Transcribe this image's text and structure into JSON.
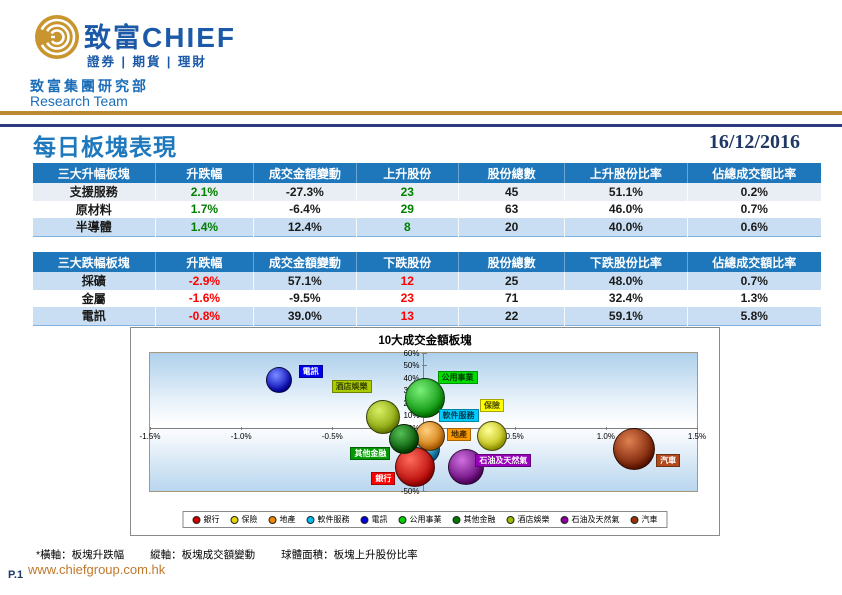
{
  "header": {
    "brand_cjk": "致富",
    "brand_latin": "CHIEF",
    "tagline": "證券 | 期貨 | 理財",
    "dept": "致富集團研究部",
    "team": "Research Team"
  },
  "title": "每日板塊表現",
  "date": "16/12/2016",
  "colors": {
    "accent_blue": "#1e76bb",
    "gold_rule": "#bb8a33",
    "navy_rule": "#2b3b7e",
    "positive": "#008000",
    "negative": "#ff0000",
    "url_gold": "#c0782a"
  },
  "tables": [
    {
      "headers": [
        "三大升幅板塊",
        "升跌幅",
        "成交金額變動",
        "上升股份",
        "股份總數",
        "上升股份比率",
        "佔總成交額比率"
      ],
      "rows": [
        [
          "支援服務",
          "2.1%",
          "-27.3%",
          "23",
          "45",
          "51.1%",
          "0.2%"
        ],
        [
          "原材料",
          "1.7%",
          "-6.4%",
          "29",
          "63",
          "46.0%",
          "0.7%"
        ],
        [
          "半導體",
          "1.4%",
          "12.4%",
          "8",
          "20",
          "40.0%",
          "0.6%"
        ]
      ]
    },
    {
      "headers": [
        "三大跌幅板塊",
        "升跌幅",
        "成交金額變動",
        "下跌股份",
        "股份總數",
        "下跌股份比率",
        "佔總成交額比率"
      ],
      "rows": [
        [
          "採礦",
          "-2.9%",
          "57.1%",
          "12",
          "25",
          "48.0%",
          "0.7%"
        ],
        [
          "金屬",
          "-1.6%",
          "-9.5%",
          "23",
          "71",
          "32.4%",
          "1.3%"
        ],
        [
          "電訊",
          "-0.8%",
          "39.0%",
          "13",
          "22",
          "59.1%",
          "5.8%"
        ]
      ]
    }
  ],
  "chart_data": {
    "type": "scatter",
    "title": "10大成交金額板塊",
    "xlabel": "板塊升跌幅",
    "ylabel": "板塊成交額變動",
    "size_meaning": "板塊上升股份比率",
    "xlim": [
      -1.5,
      1.5
    ],
    "ylim": [
      -50,
      60
    ],
    "x_ticks": [
      "-1.5%",
      "-1.0%",
      "-0.5%",
      "0.0%",
      "0.5%",
      "1.0%",
      "1.5%"
    ],
    "x_tick_values": [
      -1.5,
      -1.0,
      -0.5,
      0.0,
      0.5,
      1.0,
      1.5
    ],
    "y_ticks": [
      "60%",
      "50%",
      "40%",
      "30%",
      "20%",
      "10%",
      "0%",
      "-10%",
      "-20%",
      "-30%",
      "-40%",
      "-50%"
    ],
    "y_tick_values": [
      60,
      50,
      40,
      30,
      20,
      10,
      0,
      -10,
      -20,
      -30,
      -40,
      -50
    ],
    "grid": false,
    "legend_position": "bottom",
    "series": [
      {
        "name": "銀行",
        "x": -0.05,
        "y": -30,
        "r": 19,
        "z": 7,
        "c1": "#ff6a5a",
        "c2": "#b00000",
        "label_bg": "#ff0000",
        "label_fg": "#ffffff",
        "dot": "#cc0000",
        "label_dx": -43,
        "label_dy": 6
      },
      {
        "name": "保險",
        "x": 0.37,
        "y": -5,
        "r": 14,
        "z": 4,
        "c1": "#ffff99",
        "c2": "#b8b800",
        "label_bg": "#ffff00",
        "label_fg": "#4a4a00",
        "dot": "#e0d800",
        "label_dx": -11,
        "label_dy": -36
      },
      {
        "name": "地產",
        "x": 0.03,
        "y": -5,
        "r": 14,
        "z": 6,
        "c1": "#ffd080",
        "c2": "#cc6f00",
        "label_bg": "#ff9900",
        "label_fg": "#4a2d00",
        "dot": "#ee8800",
        "label_dx": 18,
        "label_dy": -7
      },
      {
        "name": "軟件服務",
        "x": 0.0,
        "y": -16,
        "r": 14,
        "z": 5,
        "c1": "#9ae6ff",
        "c2": "#0077aa",
        "label_bg": "#00ccff",
        "label_fg": "#003a4d",
        "dot": "#00bbee",
        "label_dx": 15,
        "label_dy": -39
      },
      {
        "name": "電訊",
        "x": -0.8,
        "y": 39,
        "r": 12,
        "z": 1,
        "c1": "#7a8cff",
        "c2": "#0000b8",
        "label_bg": "#0000ee",
        "label_fg": "#ffffff",
        "dot": "#0000dd",
        "label_dx": 21,
        "label_dy": -14
      },
      {
        "name": "公用事業",
        "x": 0.0,
        "y": 25,
        "r": 19,
        "z": 3,
        "c1": "#7bf07b",
        "c2": "#008a00",
        "label_bg": "#00dd00",
        "label_fg": "#003a00",
        "dot": "#00cc00",
        "label_dx": 14,
        "label_dy": -26
      },
      {
        "name": "其他金融",
        "x": -0.11,
        "y": -8,
        "r": 14,
        "z": 8,
        "c1": "#55c055",
        "c2": "#004d00",
        "label_bg": "#009900",
        "label_fg": "#ffffff",
        "dot": "#007700",
        "label_dx": -53,
        "label_dy": 9
      },
      {
        "name": "酒店娛樂",
        "x": -0.23,
        "y": 10,
        "r": 16,
        "z": 2,
        "c1": "#d8ee66",
        "c2": "#7f9c00",
        "label_bg": "#aacc00",
        "label_fg": "#3a4400",
        "dot": "#9cbb00",
        "label_dx": -50,
        "label_dy": -36
      },
      {
        "name": "石油及天然氣",
        "x": 0.23,
        "y": -30,
        "r": 17,
        "z": 9,
        "c1": "#d070e0",
        "c2": "#5e0070",
        "label_bg": "#9900bb",
        "label_fg": "#ffffff",
        "dot": "#880099",
        "label_dx": 10,
        "label_dy": -12
      },
      {
        "name": "汽車",
        "x": 1.15,
        "y": -16,
        "r": 20,
        "z": 10,
        "c1": "#e08050",
        "c2": "#6e1800",
        "label_bg": "#b34a1e",
        "label_fg": "#ffffff",
        "dot": "#993300",
        "label_dx": 23,
        "label_dy": 6
      }
    ]
  },
  "footnote": {
    "parts": [
      "*橫軸：板塊升跌幅",
      "縱軸：板塊成交額變動",
      "球體面積：板塊上升股份比率"
    ]
  },
  "footer": {
    "page": "P.1",
    "url": "www.chiefgroup.com.hk"
  }
}
